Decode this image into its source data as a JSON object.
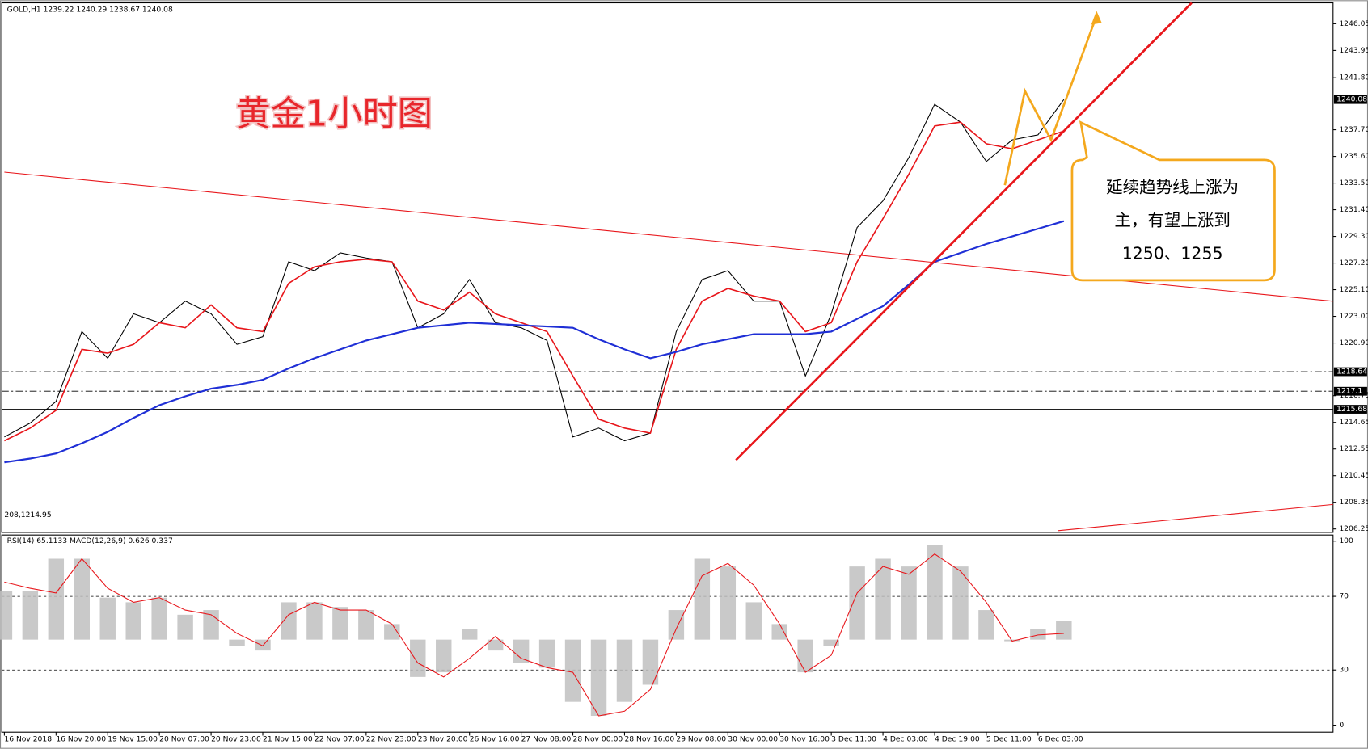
{
  "chart_data": [
    {
      "type": "line",
      "title": "GOLD,H1  1239.22 1240.29 1238.67 1240.08",
      "annotation": "黄金1小时图",
      "callout": [
        "延续趋势线上涨为",
        "主，有望上涨到",
        "1250、1255"
      ],
      "corner_text": "208,1214.95",
      "categories": [
        "16 Nov 2018",
        null,
        "16 Nov 20:00",
        null,
        "19 Nov 15:00",
        null,
        "20 Nov 07:00",
        null,
        "20 Nov 23:00",
        null,
        "21 Nov 15:00",
        null,
        "22 Nov 07:00",
        null,
        "22 Nov 23:00",
        null,
        "23 Nov 20:00",
        null,
        "26 Nov 16:00",
        null,
        "27 Nov 08:00",
        null,
        "28 Nov 00:00",
        null,
        "28 Nov 16:00",
        null,
        "29 Nov 08:00",
        null,
        "30 Nov 00:00",
        null,
        "30 Nov 16:00",
        null,
        "3 Dec 11:00",
        null,
        "4 Dec 03:00",
        null,
        "4 Dec 19:00",
        null,
        "5 Dec 11:00",
        null,
        "6 Dec 03:00",
        null
      ],
      "series": [
        {
          "color": "#000000",
          "values": [
            1213.5,
            1214.6,
            1216.3,
            1221.8,
            1219.7,
            1223.2,
            1222.5,
            1224.2,
            1223.2,
            1220.8,
            1221.4,
            1227.3,
            1226.6,
            1228.0,
            1227.6,
            1227.3,
            1222.1,
            1223.2,
            1225.9,
            1222.5,
            1222.1,
            1221.1,
            1213.5,
            1214.2,
            1213.2,
            1213.8,
            1221.8,
            1225.9,
            1226.6,
            1224.2,
            1224.2,
            1218.3,
            1223.2,
            1230.0,
            1232.1,
            1235.5,
            1239.7,
            1238.3,
            1235.2,
            1236.9,
            1237.3,
            1240.08
          ]
        },
        {
          "color": "#e8161b",
          "values": [
            1213.2,
            1214.2,
            1215.6,
            1220.4,
            1220.1,
            1220.8,
            1222.5,
            1222.1,
            1223.9,
            1222.1,
            1221.8,
            1225.6,
            1226.9,
            1227.3,
            1227.5,
            1227.3,
            1224.2,
            1223.5,
            1224.9,
            1223.2,
            1222.5,
            1221.8,
            1218.3,
            1214.9,
            1214.2,
            1213.8,
            1220.4,
            1224.2,
            1225.2,
            1224.6,
            1224.2,
            1221.8,
            1222.5,
            1227.3,
            1230.7,
            1234.2,
            1238.0,
            1238.3,
            1236.6,
            1236.2,
            1236.9,
            1237.6
          ]
        },
        {
          "color": "#1f2fd6",
          "values": [
            1211.5,
            1211.8,
            1212.2,
            1213.0,
            1213.9,
            1215.0,
            1216.0,
            1216.7,
            1217.3,
            1217.6,
            1218.0,
            1218.9,
            1219.7,
            1220.4,
            1221.1,
            1221.6,
            1222.1,
            1222.3,
            1222.5,
            1222.4,
            1222.3,
            1222.2,
            1222.1,
            1221.2,
            1220.4,
            1219.7,
            1220.2,
            1220.8,
            1221.2,
            1221.6,
            1221.6,
            1221.6,
            1221.8,
            1222.8,
            1223.8,
            1225.5,
            1227.3,
            1228.0,
            1228.7,
            1229.3,
            1229.9,
            1230.5
          ]
        }
      ],
      "ylim": [
        1205.98,
        1247.56
      ],
      "yticks": [
        1246.05,
        1243.95,
        {
          "value": 1241.8,
          "label": "1241.80"
        },
        {
          "value": 1237.7,
          "label": "1237.70"
        },
        {
          "value": 1235.6,
          "label": "1235.60"
        },
        {
          "value": 1233.5,
          "label": "1233.50"
        },
        {
          "value": 1231.4,
          "label": "1231.40"
        },
        {
          "value": 1229.3,
          "label": "1229.30"
        },
        {
          "value": 1227.2,
          "label": "1227.20"
        },
        {
          "value": 1225.1,
          "label": "1225.10"
        },
        {
          "value": 1223.0,
          "label": "1223.00"
        },
        {
          "value": 1220.9,
          "label": "1220.90"
        },
        1216.75,
        1214.65,
        1212.55,
        1210.45,
        1208.35,
        1206.25
      ],
      "levels": [
        1218.64,
        1217.1,
        1215.68
      ],
      "current_price": 1240.08
    },
    {
      "type": "combo",
      "title": "RSI(14) 65.1133 MACD(12,26,9) 0.626 0.337",
      "ylim": [
        0,
        100
      ],
      "yticks": [
        0,
        30,
        70,
        100
      ],
      "levels": [
        70,
        30
      ],
      "y2lim": [
        -5.5,
        6.33
      ],
      "series": [
        {
          "type": "bar",
          "axis": "y2",
          "color": "#c0c0c0",
          "values": [
            3.1,
            3.1,
            5.2,
            5.2,
            2.7,
            2.4,
            2.7,
            1.6,
            1.9,
            -0.4,
            -0.7,
            2.4,
            2.4,
            2.1,
            1.9,
            1.0,
            -2.4,
            -2.1,
            0.7,
            -0.7,
            -1.5,
            -1.8,
            -4.0,
            -4.9,
            -4.0,
            -2.9,
            1.9,
            5.2,
            4.7,
            2.4,
            1.0,
            -2.1,
            -0.4,
            4.7,
            5.2,
            4.7,
            6.1,
            4.7,
            1.9,
            -0.1,
            0.7,
            1.2
          ]
        },
        {
          "type": "line",
          "axis": "y2",
          "color": "#e8161b",
          "values": [
            3.7,
            3.3,
            3.0,
            5.2,
            3.3,
            2.4,
            2.7,
            1.9,
            1.6,
            0.4,
            -0.4,
            1.6,
            2.4,
            1.9,
            1.9,
            1.0,
            -1.5,
            -2.4,
            -1.2,
            0.2,
            -1.2,
            -1.8,
            -2.1,
            -4.9,
            -4.6,
            -3.2,
            0.7,
            4.1,
            4.9,
            3.5,
            1.0,
            -2.1,
            -1.0,
            3.0,
            4.7,
            4.2,
            5.5,
            4.4,
            2.4,
            -0.1,
            0.3,
            0.4
          ]
        }
      ]
    }
  ]
}
